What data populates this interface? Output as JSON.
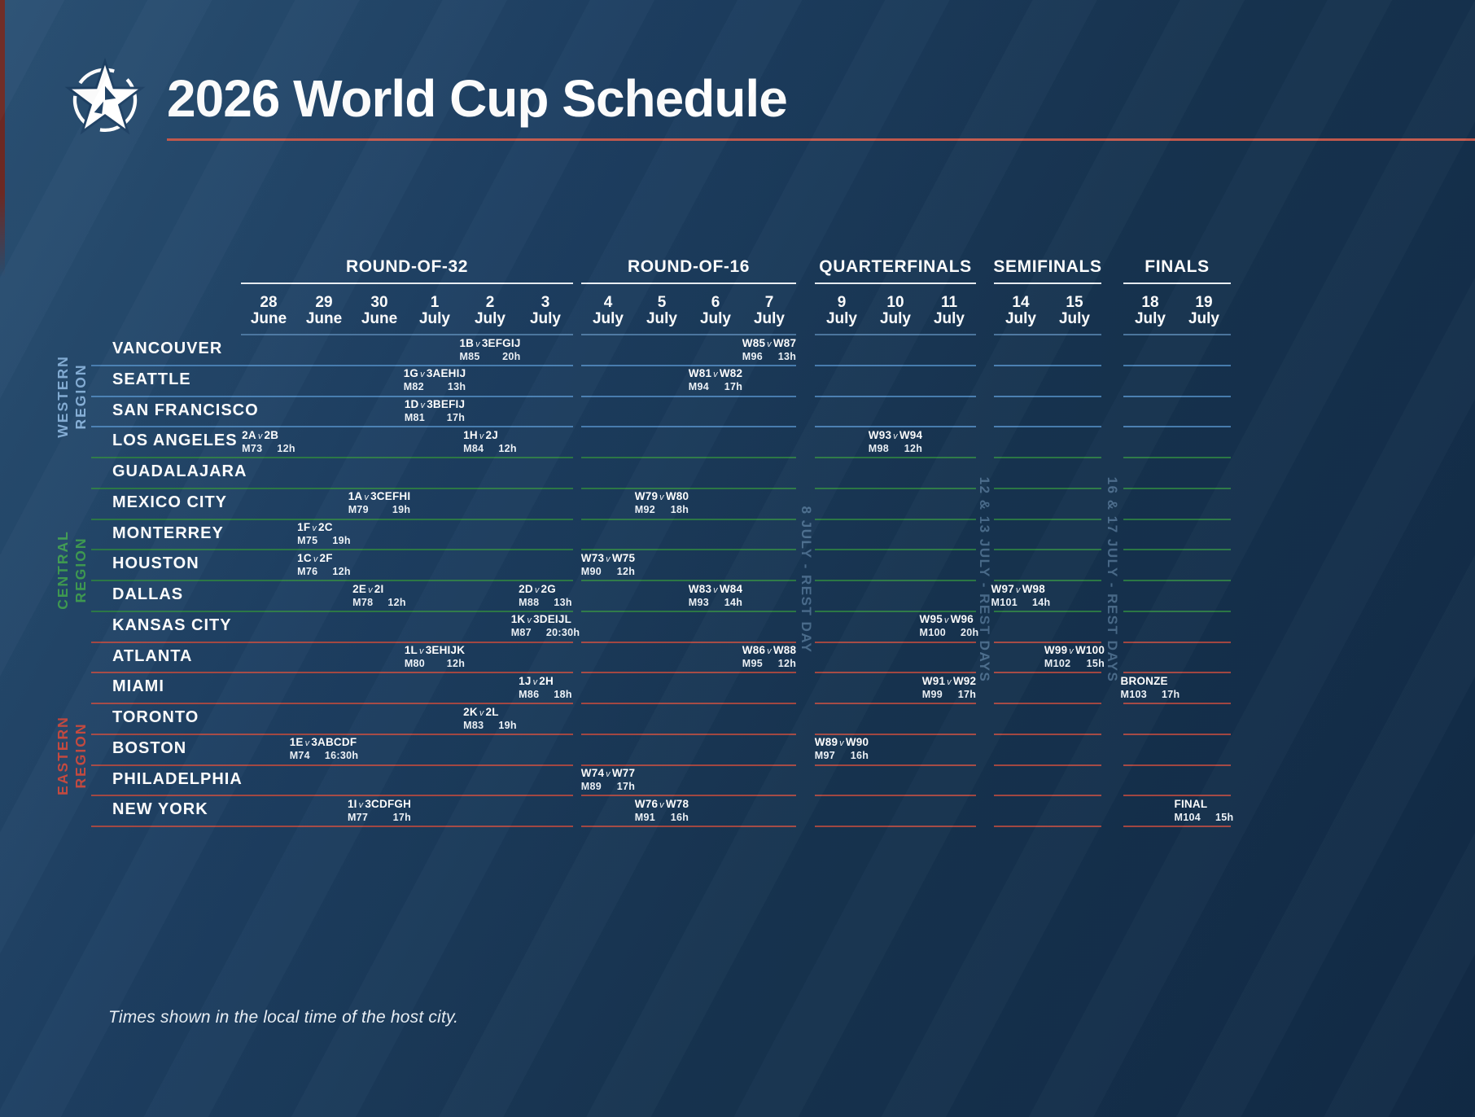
{
  "header": {
    "title": "2026 World Cup Schedule",
    "logo": "star-ball-logo"
  },
  "footer": {
    "note": "Times shown in the local time of the host city."
  },
  "colors": {
    "accent": "#c45a4d",
    "western": "#85aed6",
    "central": "#3f9b52",
    "eastern": "#c2463c",
    "line_blue": "#4d84b8",
    "line_green": "#2f7f44",
    "line_red": "#b14a41",
    "dates_rule": "#527ea9",
    "background_dark": "#112a45",
    "background_light": "#2b5174"
  },
  "rest_days": [
    {
      "label": "8 JULY - REST DAY"
    },
    {
      "label": "12 & 13 JULY - REST DAYS"
    },
    {
      "label": "16 & 17 JULY - REST DAYS"
    }
  ],
  "regions": [
    {
      "line1": "WESTERN",
      "line2": "REGION",
      "color_key": "western"
    },
    {
      "line1": "CENTRAL",
      "line2": "REGION",
      "color_key": "central"
    },
    {
      "line1": "EASTERN",
      "line2": "REGION",
      "color_key": "eastern"
    }
  ],
  "rounds": [
    {
      "label": "ROUND-OF-32",
      "dates": [
        [
          "28",
          "June"
        ],
        [
          "29",
          "June"
        ],
        [
          "30",
          "June"
        ],
        [
          "1",
          "July"
        ],
        [
          "2",
          "July"
        ],
        [
          "3",
          "July"
        ]
      ]
    },
    {
      "label": "ROUND-OF-16",
      "dates": [
        [
          "4",
          "July"
        ],
        [
          "5",
          "July"
        ],
        [
          "6",
          "July"
        ],
        [
          "7",
          "July"
        ]
      ]
    },
    {
      "label": "QUARTERFINALS",
      "dates": [
        [
          "9",
          "July"
        ],
        [
          "10",
          "July"
        ],
        [
          "11",
          "July"
        ]
      ]
    },
    {
      "label": "SEMIFINALS",
      "dates": [
        [
          "14",
          "July"
        ],
        [
          "15",
          "July"
        ]
      ]
    },
    {
      "label": "FINALS",
      "dates": [
        [
          "18",
          "July"
        ],
        [
          "19",
          "July"
        ]
      ]
    }
  ],
  "rows": [
    {
      "city": "VANCOUVER",
      "line": "blue",
      "matches": [
        {
          "round": 0,
          "col": 4,
          "teams": "1B v 3EFGIJ",
          "match": "M85",
          "time": "20h"
        },
        {
          "round": 1,
          "col": 3,
          "teams": "W85 v W87",
          "match": "M96",
          "time": "13h"
        }
      ]
    },
    {
      "city": "SEATTLE",
      "line": "blue",
      "matches": [
        {
          "round": 0,
          "col": 3,
          "teams": "1G v 3AEHIJ",
          "match": "M82",
          "time": "13h"
        },
        {
          "round": 1,
          "col": 2,
          "teams": "W81 v W82",
          "match": "M94",
          "time": "17h"
        }
      ]
    },
    {
      "city": "SAN FRANCISCO",
      "line": "blue",
      "matches": [
        {
          "round": 0,
          "col": 3,
          "teams": "1D v 3BEFIJ",
          "match": "M81",
          "time": "17h"
        }
      ]
    },
    {
      "city": "LOS ANGELES",
      "line": "green",
      "matches": [
        {
          "round": 0,
          "col": 0,
          "teams": "2A v 2B",
          "match": "M73",
          "time": "12h"
        },
        {
          "round": 0,
          "col": 4,
          "teams": "1H v 2J",
          "match": "M84",
          "time": "12h"
        },
        {
          "round": 2,
          "col": 1,
          "teams": "W93 v W94",
          "match": "M98",
          "time": "12h"
        }
      ]
    },
    {
      "city": "GUADALAJARA",
      "line": "green",
      "matches": []
    },
    {
      "city": "MEXICO CITY",
      "line": "green",
      "matches": [
        {
          "round": 0,
          "col": 2,
          "teams": "1A v 3CEFHI",
          "match": "M79",
          "time": "19h"
        },
        {
          "round": 1,
          "col": 1,
          "teams": "W79 v W80",
          "match": "M92",
          "time": "18h"
        }
      ]
    },
    {
      "city": "MONTERREY",
      "line": "green",
      "matches": [
        {
          "round": 0,
          "col": 1,
          "teams": "1F v 2C",
          "match": "M75",
          "time": "19h"
        }
      ]
    },
    {
      "city": "HOUSTON",
      "line": "green",
      "matches": [
        {
          "round": 0,
          "col": 1,
          "teams": "1C v 2F",
          "match": "M76",
          "time": "12h"
        },
        {
          "round": 1,
          "col": 0,
          "teams": "W73 v W75",
          "match": "M90",
          "time": "12h"
        }
      ]
    },
    {
      "city": "DALLAS",
      "line": "green",
      "matches": [
        {
          "round": 0,
          "col": 2,
          "teams": "2E v 2I",
          "match": "M78",
          "time": "12h"
        },
        {
          "round": 0,
          "col": 5,
          "teams": "2D v 2G",
          "match": "M88",
          "time": "13h"
        },
        {
          "round": 1,
          "col": 2,
          "teams": "W83 v W84",
          "match": "M93",
          "time": "14h"
        },
        {
          "round": 3,
          "col": 0,
          "teams": "W97 v W98",
          "match": "M101",
          "time": "14h"
        }
      ]
    },
    {
      "city": "KANSAS CITY",
      "line": "red",
      "matches": [
        {
          "round": 0,
          "col": 5,
          "teams": "1K v 3DEIJL",
          "match": "M87",
          "time": "20:30h"
        },
        {
          "round": 2,
          "col": 2,
          "teams": "W95 v W96",
          "match": "M100",
          "time": "20h"
        }
      ]
    },
    {
      "city": "ATLANTA",
      "line": "red",
      "matches": [
        {
          "round": 0,
          "col": 3,
          "teams": "1L v 3EHIJK",
          "match": "M80",
          "time": "12h"
        },
        {
          "round": 1,
          "col": 3,
          "teams": "W86 v W88",
          "match": "M95",
          "time": "12h"
        },
        {
          "round": 3,
          "col": 1,
          "teams": "W99 v W100",
          "match": "M102",
          "time": "15h"
        }
      ]
    },
    {
      "city": "MIAMI",
      "line": "red",
      "matches": [
        {
          "round": 0,
          "col": 5,
          "teams": "1J v 2H",
          "match": "M86",
          "time": "18h"
        },
        {
          "round": 2,
          "col": 2,
          "teams": "W91 v W92",
          "match": "M99",
          "time": "17h"
        },
        {
          "round": 4,
          "col": 0,
          "teams": "BRONZE",
          "match": "M103",
          "time": "17h"
        }
      ]
    },
    {
      "city": "TORONTO",
      "line": "red",
      "matches": [
        {
          "round": 0,
          "col": 4,
          "teams": "2K v 2L",
          "match": "M83",
          "time": "19h"
        }
      ]
    },
    {
      "city": "BOSTON",
      "line": "red",
      "matches": [
        {
          "round": 0,
          "col": 1,
          "teams": "1E v 3ABCDF",
          "match": "M74",
          "time": "16:30h"
        },
        {
          "round": 2,
          "col": 0,
          "teams": "W89 v W90",
          "match": "M97",
          "time": "16h"
        }
      ]
    },
    {
      "city": "PHILADELPHIA",
      "line": "red",
      "matches": [
        {
          "round": 1,
          "col": 0,
          "teams": "W74 v W77",
          "match": "M89",
          "time": "17h"
        }
      ]
    },
    {
      "city": "NEW YORK",
      "line": "red",
      "matches": [
        {
          "round": 0,
          "col": 2,
          "teams": "1I v 3CDFGH",
          "match": "M77",
          "time": "17h"
        },
        {
          "round": 1,
          "col": 1,
          "teams": "W76 v W78",
          "match": "M91",
          "time": "16h"
        },
        {
          "round": 4,
          "col": 1,
          "teams": "FINAL",
          "match": "M104",
          "time": "15h"
        }
      ]
    }
  ]
}
